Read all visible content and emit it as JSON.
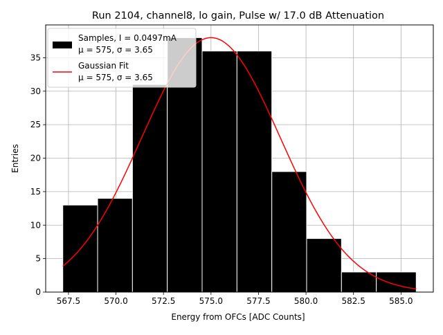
{
  "chart_data": {
    "type": "bar",
    "title": "Run 2104, channel8, lo gain, Pulse w/ 17.0 dB Attenuation",
    "xlabel": "Energy from OFCs [ADC Counts]",
    "ylabel": "Entries",
    "xlim": [
      566.3,
      586.7
    ],
    "ylim": [
      0,
      39.9
    ],
    "grid": true,
    "legend_position": "top-left",
    "xticks": [
      "567.5",
      "570.0",
      "572.5",
      "575.0",
      "577.5",
      "580.0",
      "582.5",
      "585.0"
    ],
    "yticks": [
      "0",
      "5",
      "10",
      "15",
      "20",
      "25",
      "30",
      "35"
    ],
    "bins": {
      "edges": [
        567.2,
        569.033,
        570.867,
        572.7,
        574.533,
        576.367,
        578.2,
        580.033,
        581.867,
        583.7,
        585.8
      ],
      "values": [
        13,
        14,
        31,
        38,
        36,
        36,
        18,
        8,
        3,
        3
      ]
    },
    "fit": {
      "mu": 575.0,
      "sigma": 3.65,
      "amplitude": 38.0,
      "x_start": 567.2,
      "x_end": 585.8
    },
    "series": [
      {
        "name": "Samples",
        "label_line1": "Samples, I = 0.0497mA",
        "label_line2": "μ = 575, σ = 3.65",
        "color": "#000000",
        "kind": "histogram"
      },
      {
        "name": "Gaussian Fit",
        "label_line1": "Gaussian Fit",
        "label_line2": "μ = 575, σ = 3.65",
        "color": "#ff0000",
        "kind": "line"
      }
    ]
  }
}
